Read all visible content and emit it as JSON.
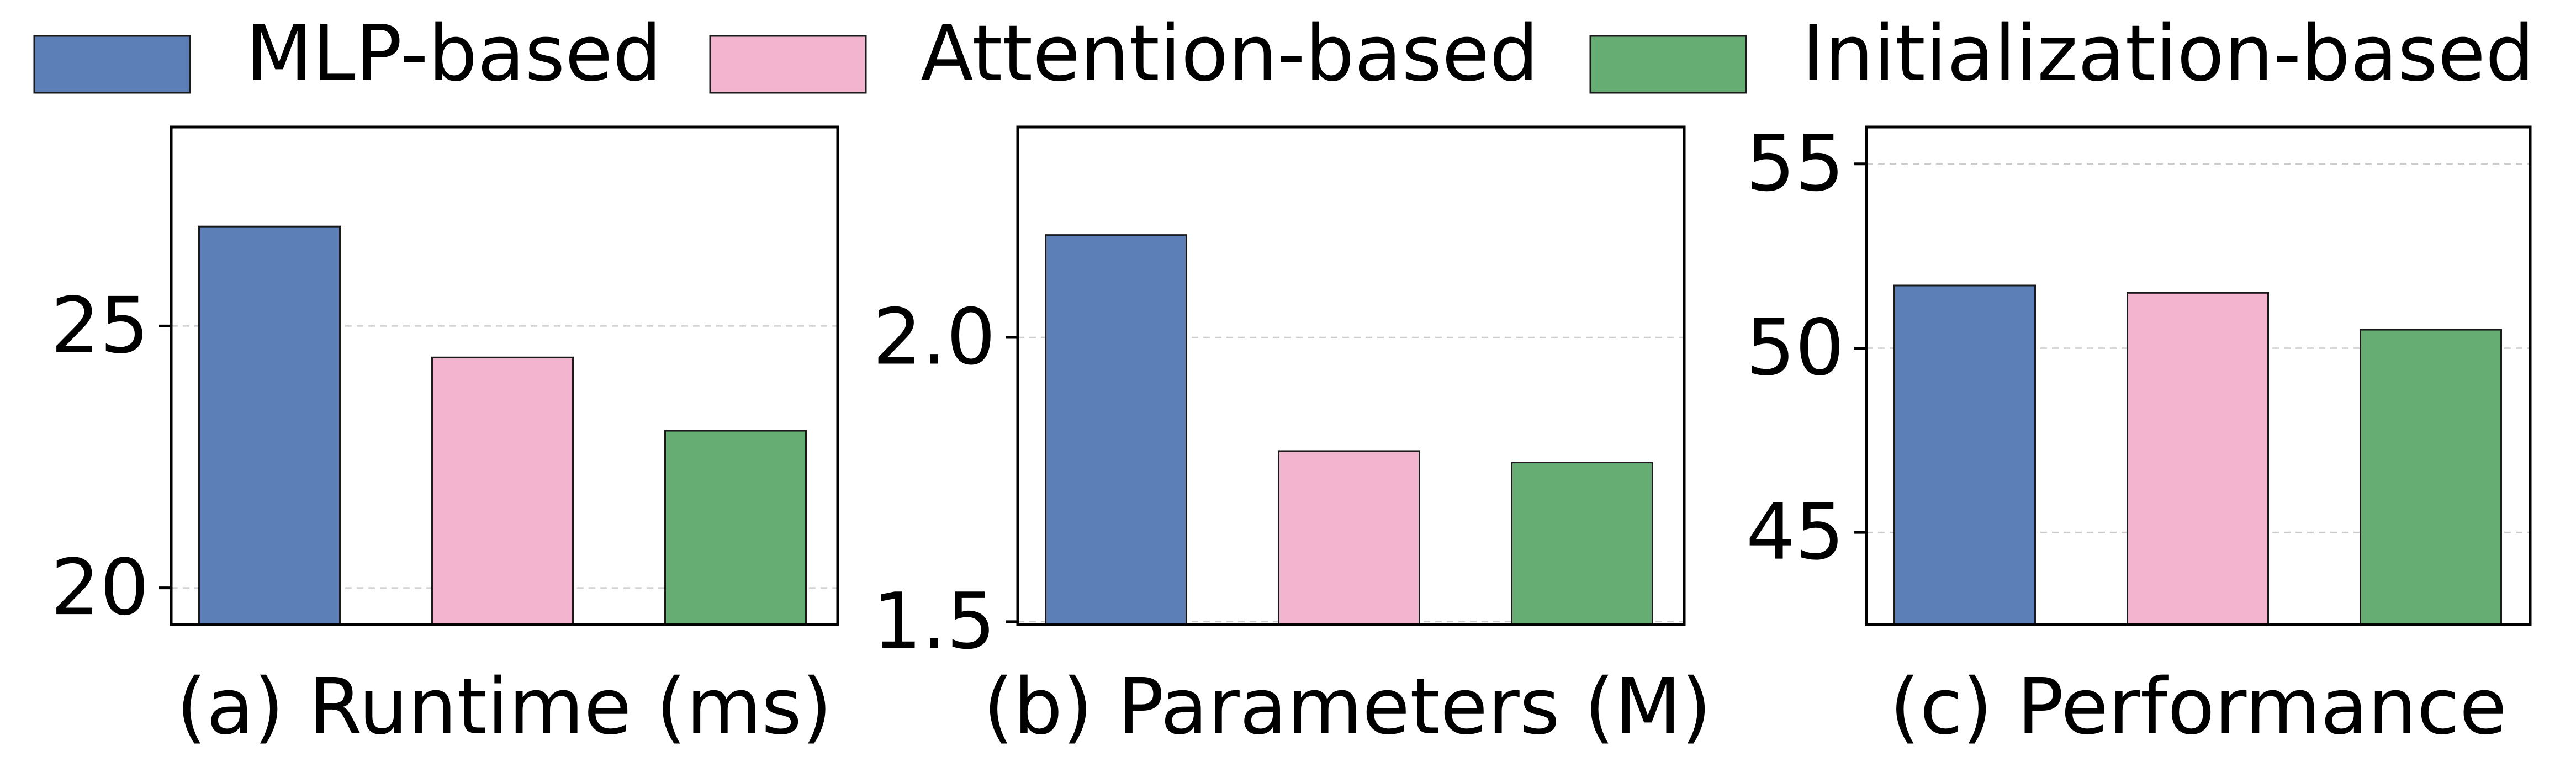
{
  "legend": {
    "placement": "top-center",
    "items": [
      {
        "label": "MLP-based",
        "color": "#5b7fb6"
      },
      {
        "label": "Attention-based",
        "color": "#f2b4cf"
      },
      {
        "label": "Initialization-based",
        "color": "#66ad73"
      }
    ]
  },
  "chart_data": [
    {
      "type": "bar",
      "title": "",
      "xlabel": "(a) Runtime (ms)",
      "ylabel": "",
      "categories": [
        "MLP-based",
        "Attention-based",
        "Initialization-based"
      ],
      "values": [
        26.9,
        24.4,
        23.0
      ],
      "colors": [
        "#5b7fb6",
        "#f2b4cf",
        "#66ad73"
      ],
      "ylim": [
        19.3,
        28.8
      ],
      "yticks": [
        20,
        25
      ],
      "ytick_labels": [
        "20",
        "25"
      ],
      "grid": "y-dashed"
    },
    {
      "type": "bar",
      "title": "",
      "xlabel": "(b) Parameters (M)",
      "ylabel": "",
      "categories": [
        "MLP-based",
        "Attention-based",
        "Initialization-based"
      ],
      "values": [
        2.18,
        1.8,
        1.78
      ],
      "colors": [
        "#5b7fb6",
        "#f2b4cf",
        "#66ad73"
      ],
      "ylim": [
        1.495,
        2.37
      ],
      "yticks": [
        1.5,
        2.0
      ],
      "ytick_labels": [
        "1.5",
        "2.0"
      ],
      "grid": "y-dashed"
    },
    {
      "type": "bar",
      "title": "",
      "xlabel": "(c) Performance",
      "ylabel": "",
      "categories": [
        "MLP-based",
        "Attention-based",
        "Initialization-based"
      ],
      "values": [
        51.7,
        51.5,
        50.5
      ],
      "colors": [
        "#5b7fb6",
        "#f2b4cf",
        "#66ad73"
      ],
      "ylim": [
        42.5,
        56.0
      ],
      "yticks": [
        45,
        50,
        55
      ],
      "ytick_labels": [
        "45",
        "50",
        "55"
      ],
      "grid": "y-dashed"
    }
  ]
}
